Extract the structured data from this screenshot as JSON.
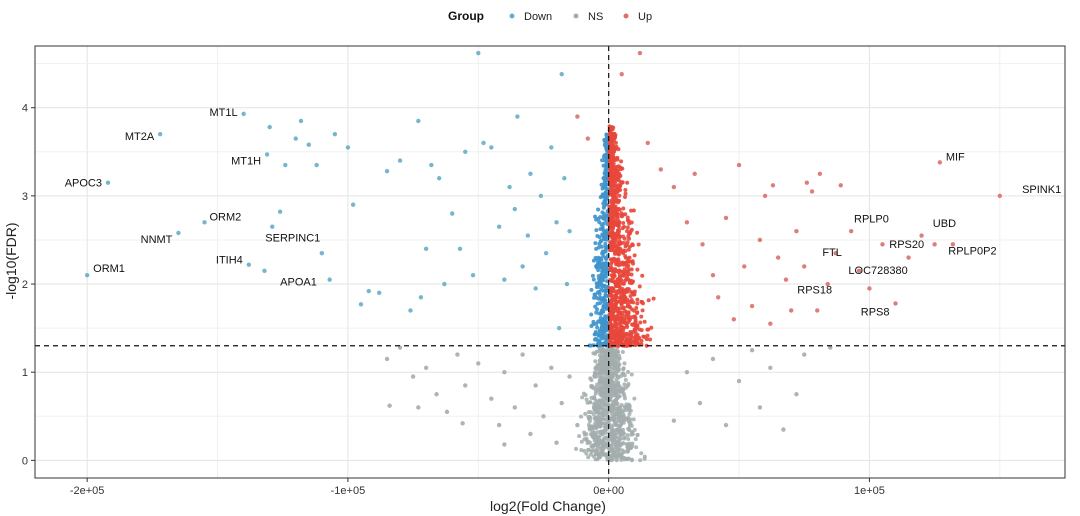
{
  "chart_data": {
    "type": "scatter",
    "title": "",
    "xlabel": "log2(Fold Change)",
    "ylabel": "-log10(FDR)",
    "xlim": [
      -220000,
      175000
    ],
    "ylim": [
      -0.2,
      4.7
    ],
    "x_ticks": [
      {
        "value": -200000,
        "label": "-2e+05"
      },
      {
        "value": -100000,
        "label": "-1e+05"
      },
      {
        "value": 0,
        "label": "0e+00"
      },
      {
        "value": 100000,
        "label": "1e+05"
      }
    ],
    "y_ticks": [
      {
        "value": 0,
        "label": "0"
      },
      {
        "value": 1,
        "label": "1"
      },
      {
        "value": 2,
        "label": "2"
      },
      {
        "value": 3,
        "label": "3"
      },
      {
        "value": 4,
        "label": "4"
      }
    ],
    "grid": true,
    "threshold_lines": {
      "vertical_x": 0,
      "horizontal_y": 1.3
    },
    "legend": {
      "title": "Group",
      "placement": "top",
      "entries": [
        {
          "name": "Down",
          "color": "#66aec9"
        },
        {
          "name": "NS",
          "color": "#a3adad"
        },
        {
          "name": "Up",
          "color": "#d9716a"
        }
      ]
    },
    "colors": {
      "Down": "#66aec9",
      "NS": "#a3adad",
      "Up": "#d9716a",
      "DownDense": "#3f93cc",
      "UpDense": "#e8473b"
    },
    "series": [
      {
        "name": "Down",
        "points": [
          [
            -200000,
            2.1
          ],
          [
            -192000,
            3.15
          ],
          [
            -172000,
            3.7
          ],
          [
            -165000,
            2.58
          ],
          [
            -155000,
            2.7
          ],
          [
            -140000,
            3.93
          ],
          [
            -138000,
            2.22
          ],
          [
            -132000,
            2.15
          ],
          [
            -131000,
            3.47
          ],
          [
            -130000,
            3.78
          ],
          [
            -129000,
            2.65
          ],
          [
            -126000,
            2.82
          ],
          [
            -124000,
            3.35
          ],
          [
            -120000,
            3.65
          ],
          [
            -118000,
            3.85
          ],
          [
            -115000,
            3.58
          ],
          [
            -112000,
            3.35
          ],
          [
            -110000,
            2.35
          ],
          [
            -107000,
            2.05
          ],
          [
            -105000,
            3.7
          ],
          [
            -100000,
            3.55
          ],
          [
            -98000,
            2.9
          ],
          [
            -95000,
            1.77
          ],
          [
            -92000,
            1.92
          ],
          [
            -88000,
            1.9
          ],
          [
            -85000,
            3.28
          ],
          [
            -80000,
            3.4
          ],
          [
            -76000,
            1.7
          ],
          [
            -73000,
            3.85
          ],
          [
            -72000,
            1.85
          ],
          [
            -70000,
            2.4
          ],
          [
            -68000,
            3.35
          ],
          [
            -65000,
            3.2
          ],
          [
            -63000,
            2.0
          ],
          [
            -60000,
            2.8
          ],
          [
            -57000,
            2.4
          ],
          [
            -55000,
            3.5
          ],
          [
            -52000,
            2.1
          ],
          [
            -50000,
            4.62
          ],
          [
            -48000,
            3.6
          ],
          [
            -45000,
            3.55
          ],
          [
            -42000,
            2.65
          ],
          [
            -40000,
            2.05
          ],
          [
            -38000,
            3.1
          ],
          [
            -36000,
            2.85
          ],
          [
            -35000,
            3.9
          ],
          [
            -33000,
            2.2
          ],
          [
            -31000,
            2.55
          ],
          [
            -30000,
            3.25
          ],
          [
            -28000,
            1.95
          ],
          [
            -26000,
            3.0
          ],
          [
            -24000,
            2.35
          ],
          [
            -22000,
            3.55
          ],
          [
            -20000,
            2.7
          ],
          [
            -19000,
            1.5
          ],
          [
            -18000,
            4.38
          ],
          [
            -17000,
            3.2
          ],
          [
            -16000,
            2.0
          ],
          [
            -15000,
            2.6
          ]
        ]
      },
      {
        "name": "NS",
        "points": [
          [
            -85000,
            1.15
          ],
          [
            -80000,
            1.28
          ],
          [
            -75000,
            0.95
          ],
          [
            -73000,
            0.6
          ],
          [
            -70000,
            1.05
          ],
          [
            -66000,
            0.75
          ],
          [
            -62000,
            0.55
          ],
          [
            -58000,
            1.2
          ],
          [
            -55000,
            0.85
          ],
          [
            -50000,
            1.1
          ],
          [
            -45000,
            0.7
          ],
          [
            -42000,
            0.4
          ],
          [
            -40000,
            1.0
          ],
          [
            -36000,
            0.6
          ],
          [
            -33000,
            1.2
          ],
          [
            -30000,
            0.3
          ],
          [
            -28000,
            0.85
          ],
          [
            -25000,
            0.5
          ],
          [
            -22000,
            1.05
          ],
          [
            -20000,
            0.2
          ],
          [
            -18000,
            0.65
          ],
          [
            -15000,
            0.95
          ],
          [
            -12000,
            0.4
          ],
          [
            25000,
            0.45
          ],
          [
            30000,
            1.0
          ],
          [
            35000,
            0.65
          ],
          [
            40000,
            1.15
          ],
          [
            45000,
            0.4
          ],
          [
            50000,
            0.9
          ],
          [
            55000,
            1.25
          ],
          [
            58000,
            0.6
          ],
          [
            62000,
            1.05
          ],
          [
            67000,
            0.35
          ],
          [
            72000,
            0.75
          ],
          [
            75000,
            1.2
          ],
          [
            85000,
            1.28
          ],
          [
            -84000,
            0.62
          ],
          [
            -56000,
            0.42
          ],
          [
            -40000,
            0.18
          ]
        ]
      },
      {
        "name": "Up",
        "points": [
          [
            -12000,
            3.9
          ],
          [
            -8000,
            3.65
          ],
          [
            5000,
            4.38
          ],
          [
            12000,
            4.62
          ],
          [
            15000,
            3.6
          ],
          [
            20000,
            3.3
          ],
          [
            25000,
            3.1
          ],
          [
            30000,
            2.7
          ],
          [
            33000,
            3.25
          ],
          [
            36000,
            2.45
          ],
          [
            40000,
            2.1
          ],
          [
            42000,
            1.85
          ],
          [
            45000,
            2.75
          ],
          [
            48000,
            1.6
          ],
          [
            50000,
            3.35
          ],
          [
            52000,
            2.2
          ],
          [
            55000,
            1.75
          ],
          [
            58000,
            2.5
          ],
          [
            60000,
            3.0
          ],
          [
            62000,
            1.55
          ],
          [
            63000,
            3.12
          ],
          [
            65000,
            2.3
          ],
          [
            68000,
            2.05
          ],
          [
            70000,
            1.7
          ],
          [
            72000,
            2.6
          ],
          [
            75000,
            2.2
          ],
          [
            76000,
            3.15
          ],
          [
            78000,
            3.05
          ],
          [
            80000,
            1.7
          ],
          [
            81000,
            3.25
          ],
          [
            84000,
            2.0
          ],
          [
            87000,
            2.35
          ],
          [
            89000,
            3.12
          ],
          [
            93000,
            2.6
          ],
          [
            96000,
            2.15
          ],
          [
            100000,
            1.95
          ],
          [
            105000,
            2.45
          ],
          [
            110000,
            1.78
          ],
          [
            115000,
            2.3
          ],
          [
            120000,
            2.55
          ],
          [
            125000,
            2.45
          ],
          [
            127000,
            3.38
          ],
          [
            132000,
            2.45
          ],
          [
            150000,
            3.0
          ]
        ]
      }
    ],
    "labeled_points": [
      {
        "label": "MT1L",
        "x": -140000,
        "y": 3.93
      },
      {
        "label": "MT2A",
        "x": -172000,
        "y": 3.7
      },
      {
        "label": "MT1H",
        "x": -131000,
        "y": 3.47
      },
      {
        "label": "APOC3",
        "x": -192000,
        "y": 3.15
      },
      {
        "label": "ORM2",
        "x": -155000,
        "y": 2.7
      },
      {
        "label": "SERPINC1",
        "x": -129000,
        "y": 2.65
      },
      {
        "label": "NNMT",
        "x": -165000,
        "y": 2.58
      },
      {
        "label": "ITIH4",
        "x": -138000,
        "y": 2.22
      },
      {
        "label": "ORM1",
        "x": -200000,
        "y": 2.1
      },
      {
        "label": "APOA1",
        "x": -110000,
        "y": 2.05
      },
      {
        "label": "MIF",
        "x": 127000,
        "y": 3.38
      },
      {
        "label": "SPINK1",
        "x": 157000,
        "y": 3.0
      },
      {
        "label": "RPLP0",
        "x": 96000,
        "y": 2.63
      },
      {
        "label": "UBD",
        "x": 122000,
        "y": 2.6
      },
      {
        "label": "FTL",
        "x": 85000,
        "y": 2.4
      },
      {
        "label": "RPS20",
        "x": 108000,
        "y": 2.5
      },
      {
        "label": "RPLP0P2",
        "x": 131000,
        "y": 2.45
      },
      {
        "label": "LOC728380",
        "x": 95000,
        "y": 2.25
      },
      {
        "label": "RPS18",
        "x": 88000,
        "y": 2.02
      },
      {
        "label": "RPS8",
        "x": 110000,
        "y": 1.78
      }
    ]
  }
}
